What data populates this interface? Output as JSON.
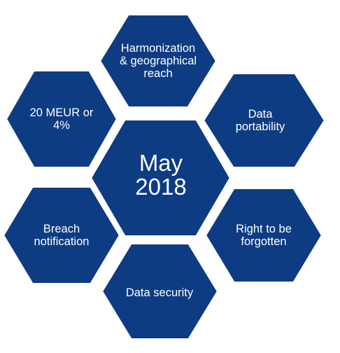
{
  "colors": {
    "hex_fill": "#0e3c82",
    "border": "#ffffff",
    "text": "#ffffff"
  },
  "center": {
    "lines": [
      "May",
      "2018"
    ]
  },
  "hexagons": [
    {
      "id": "top",
      "lines": [
        "Harmonization",
        "& geographical",
        "reach"
      ]
    },
    {
      "id": "upper-right",
      "lines": [
        "Data",
        "portability"
      ]
    },
    {
      "id": "lower-right",
      "lines": [
        "Right to be",
        "forgotten"
      ]
    },
    {
      "id": "bottom",
      "lines": [
        "Data security"
      ]
    },
    {
      "id": "lower-left",
      "lines": [
        "Breach",
        "notification"
      ]
    },
    {
      "id": "upper-left",
      "lines": [
        "20 MEUR or",
        "4%"
      ]
    }
  ]
}
